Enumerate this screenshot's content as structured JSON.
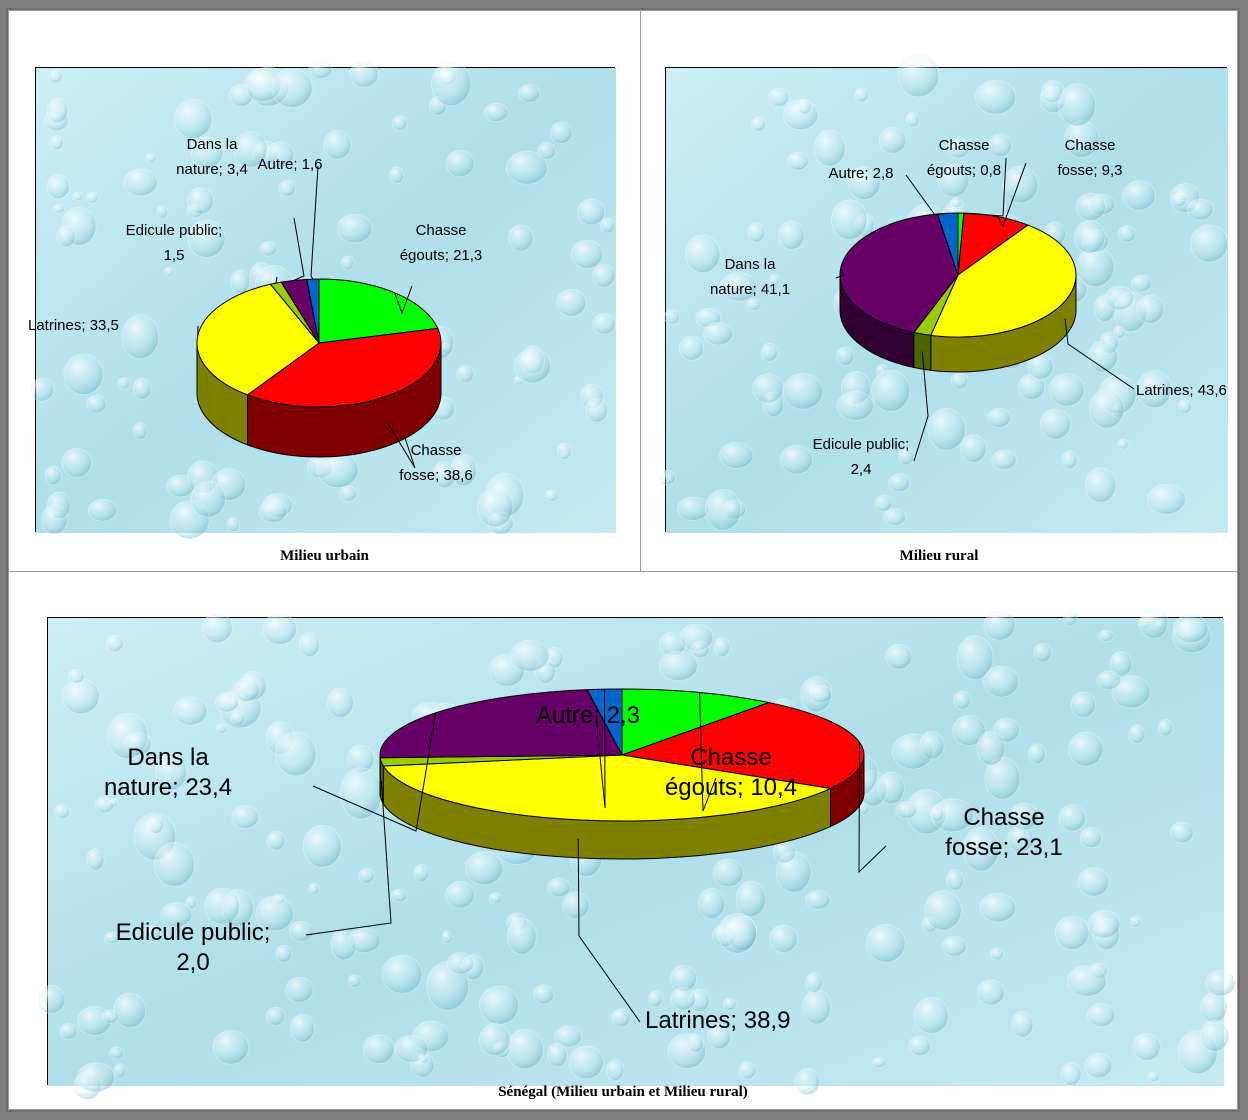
{
  "colors": {
    "chasse_egouts": "#00ff00",
    "chasse_fosse": "#ff0000",
    "latrines": "#ffff00",
    "edicule_public": "#99cc00",
    "dans_la_nature": "#660066",
    "autre": "#0066cc",
    "background": "#bfe6ef"
  },
  "chart_data": [
    {
      "type": "pie",
      "title": "",
      "caption": "Milieu urbain",
      "categories": [
        "Chasse égouts",
        "Chasse fosse",
        "Latrines",
        "Edicule public",
        "Dans la nature",
        "Autre"
      ],
      "values": [
        21.3,
        38.6,
        33.5,
        1.5,
        3.4,
        1.6
      ],
      "labels": [
        [
          "Chasse",
          "égouts; 21,3"
        ],
        [
          "Chasse",
          "fosse; 38,6"
        ],
        [
          "Latrines; 33,5"
        ],
        [
          "Edicule public;",
          "1,5"
        ],
        [
          "Dans la",
          "nature; 3,4"
        ],
        [
          "Autre; 1,6"
        ]
      ]
    },
    {
      "type": "pie",
      "title": "",
      "caption": "Milieu rural",
      "categories": [
        "Chasse égouts",
        "Chasse fosse",
        "Latrines",
        "Edicule public",
        "Dans la nature",
        "Autre"
      ],
      "values": [
        0.8,
        9.3,
        43.6,
        2.4,
        41.1,
        2.8
      ],
      "labels": [
        [
          "Chasse",
          "égouts; 0,8"
        ],
        [
          "Chasse",
          "fosse; 9,3"
        ],
        [
          "Latrines; 43,6"
        ],
        [
          "Edicule public;",
          "2,4"
        ],
        [
          "Dans la",
          "nature; 41,1"
        ],
        [
          "Autre; 2,8"
        ]
      ]
    },
    {
      "type": "pie",
      "title": "",
      "caption": "Sénégal (Milieu urbain et Milieu rural)",
      "categories": [
        "Chasse égouts",
        "Chasse fosse",
        "Latrines",
        "Edicule public",
        "Dans la nature",
        "Autre"
      ],
      "values": [
        10.4,
        23.1,
        38.9,
        2.0,
        23.4,
        2.3
      ],
      "labels": [
        [
          "Chasse",
          "égouts; 10,4"
        ],
        [
          "Chasse",
          "fosse; 23,1"
        ],
        [
          "Latrines; 38,9"
        ],
        [
          "Edicule public;",
          "2,0"
        ],
        [
          "Dans la",
          "nature; 23,4"
        ],
        [
          "Autre; 2,3"
        ]
      ]
    }
  ]
}
